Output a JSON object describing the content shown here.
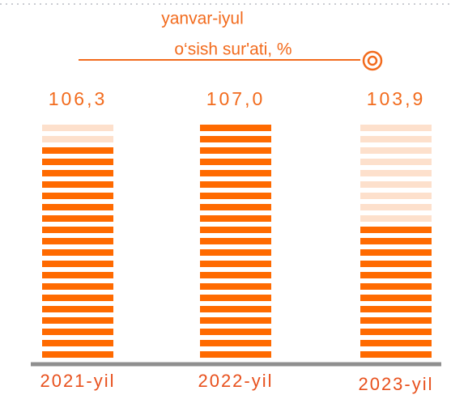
{
  "chart_data": {
    "type": "bar",
    "title": "yanvar-iyul",
    "subtitle": "o‘sish sur'ati, %",
    "categories": [
      "2021-yil",
      "2022-yil",
      "2023-yil"
    ],
    "values": [
      106.3,
      107.0,
      103.9
    ],
    "value_labels": [
      "106,3",
      "107,0",
      "103,9"
    ],
    "color": "#ff6a00",
    "ylim": [
      100,
      107
    ]
  }
}
